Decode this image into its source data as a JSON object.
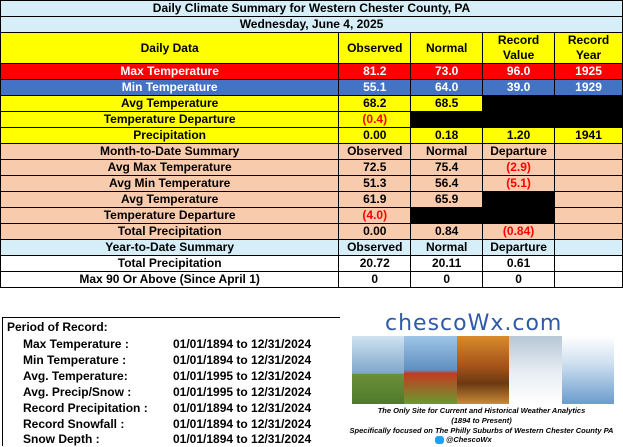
{
  "title": "Daily Climate Summary for Western Chester County, PA",
  "date": "Wednesday, June 4, 2025",
  "headers": {
    "daily_data": "Daily Data",
    "observed": "Observed",
    "normal": "Normal",
    "record_value": "Record Value",
    "record_year": "Record Year"
  },
  "daily": {
    "max_temp": {
      "label": "Max Temperature",
      "observed": "81.2",
      "normal": "73.0",
      "record_value": "96.0",
      "record_year": "1925"
    },
    "min_temp": {
      "label": "Min Temperature",
      "observed": "55.1",
      "normal": "64.0",
      "record_value": "39.0",
      "record_year": "1929"
    },
    "avg_temp": {
      "label": "Avg Temperature",
      "observed": "68.2",
      "normal": "68.5"
    },
    "temp_departure": {
      "label": "Temperature Departure",
      "observed": "(0.4)"
    },
    "precip": {
      "label": "Precipitation",
      "observed": "0.00",
      "normal": "0.18",
      "record_value": "1.20",
      "record_year": "1941"
    }
  },
  "mtd": {
    "title": "Month-to-Date Summary",
    "observed": "Observed",
    "normal": "Normal",
    "departure": "Departure",
    "rows": {
      "avg_max": {
        "label": "Avg Max Temperature",
        "observed": "72.5",
        "normal": "75.4",
        "departure": "(2.9)"
      },
      "avg_min": {
        "label": "Avg Min Temperature",
        "observed": "51.3",
        "normal": "56.4",
        "departure": "(5.1)"
      },
      "avg_temp": {
        "label": "Avg Temperature",
        "observed": "61.9",
        "normal": "65.9"
      },
      "temp_departure": {
        "label": "Temperature Departure",
        "observed": "(4.0)"
      },
      "total_precip": {
        "label": "Total Precipitation",
        "observed": "0.00",
        "normal": "0.84",
        "departure": "(0.84)"
      }
    }
  },
  "ytd": {
    "title": "Year-to-Date Summary",
    "observed": "Observed",
    "normal": "Normal",
    "departure": "Departure",
    "rows": {
      "total_precip": {
        "label": "Total Precipitation",
        "observed": "20.72",
        "normal": "20.11",
        "departure": "0.61"
      },
      "max90": {
        "label": "Max 90 Or Above (Since April 1)",
        "observed": "0",
        "normal": "0",
        "departure": "0"
      }
    }
  },
  "period_of_record": {
    "title": "Period of Record:",
    "rows": [
      {
        "label": "Max Temperature :",
        "value": "01/01/1894 to 12/31/2024"
      },
      {
        "label": "Min Temperature :",
        "value": "01/01/1894 to 12/31/2024"
      },
      {
        "label": "Avg. Temperature:",
        "value": "01/01/1995 to 12/31/2024"
      },
      {
        "label": "Avg. Precip/Snow :",
        "value": "01/01/1995 to 12/31/2024"
      },
      {
        "label": "Record Precipitation :",
        "value": "01/01/1894 to 12/31/2024"
      },
      {
        "label": "Record Snowfall :",
        "value": "01/01/1894 to 12/31/2024"
      },
      {
        "label": "Snow Depth :",
        "value": "01/01/1894 to 12/31/2024"
      }
    ]
  },
  "logo": {
    "name": "chescoWx.com",
    "tagline1": "The Only Site for Current and Historical Weather Analytics",
    "tagline2": "(1894 to Present)",
    "tagline3": "Specifically focused on The Philly Suburbs of Western Chester County PA",
    "twitter": "@ChescoWx"
  }
}
